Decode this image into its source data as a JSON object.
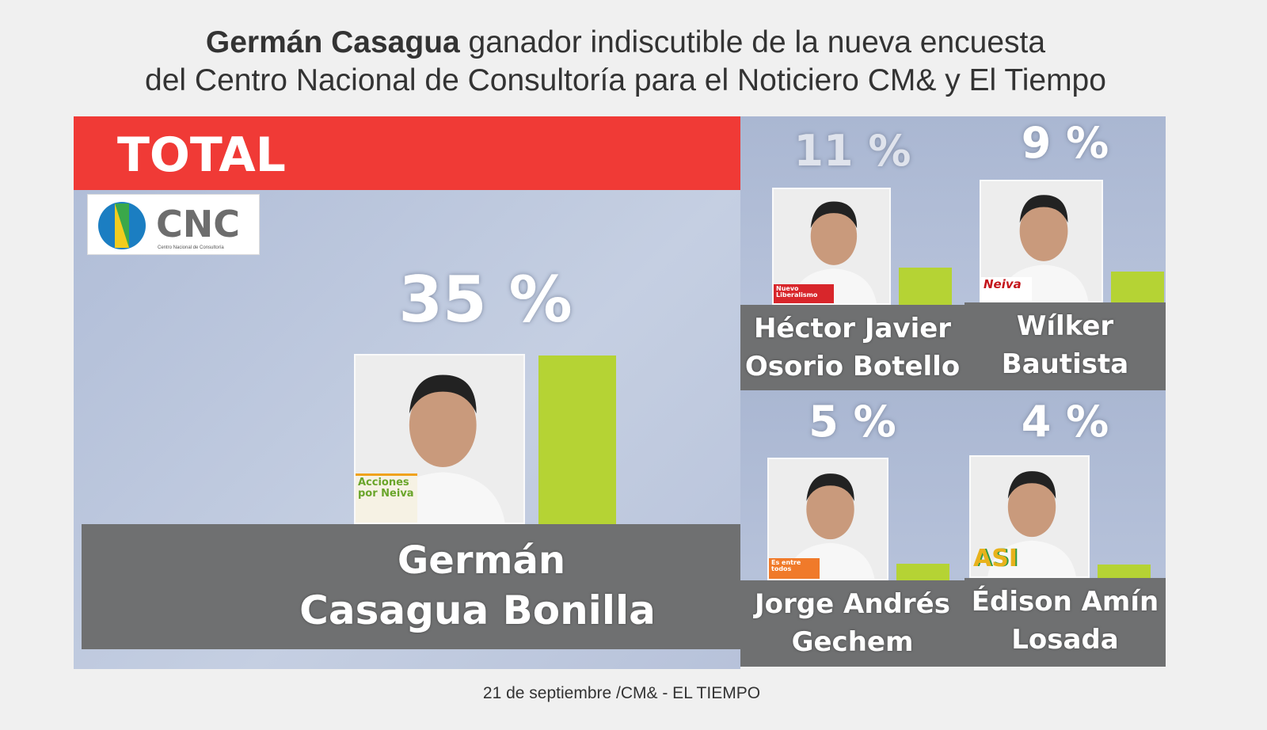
{
  "headline": {
    "bold": "Germán Casagua",
    "rest1": " ganador indiscutible de la nueva encuesta",
    "line2": "del Centro Nacional de Consultoría para el Noticiero CM& y El Tiempo"
  },
  "panel_label": "TOTAL",
  "logo": {
    "text": "CNC",
    "subtitle": "Centro Nacional de Consultoría"
  },
  "caption": "21 de septiembre /CM& - EL TIEMPO",
  "candidates": [
    {
      "pct_label": "35 %",
      "name1": "Germán",
      "name2": "Casagua Bonilla",
      "party": "Acciones por Neiva"
    },
    {
      "pct_label": "11 %",
      "name1": "Héctor Javier",
      "name2": "Osorio Botello",
      "party": "Nuevo Liberalismo"
    },
    {
      "pct_label": "9 %",
      "name1": "Wílker",
      "name2": "Bautista",
      "party": "Neiva"
    },
    {
      "pct_label": "5 %",
      "name1": "Jorge Andrés",
      "name2": "Gechem",
      "party": "Es entre todos"
    },
    {
      "pct_label": "4 %",
      "name1": "Édison Amín",
      "name2": "Losada",
      "party": "ASI"
    }
  ],
  "colors": {
    "red": "#f03a36",
    "bar": "#b5d334",
    "band": "#6f7071"
  },
  "chart_data": {
    "type": "bar",
    "title": "TOTAL",
    "xlabel": "",
    "ylabel": "%",
    "ylim": [
      0,
      40
    ],
    "categories": [
      "Germán Casagua Bonilla",
      "Héctor Javier Osorio Botello",
      "Wílker Bautista",
      "Jorge Andrés Gechem",
      "Édison Amín Losada"
    ],
    "values": [
      35,
      11,
      9,
      5,
      4
    ]
  }
}
